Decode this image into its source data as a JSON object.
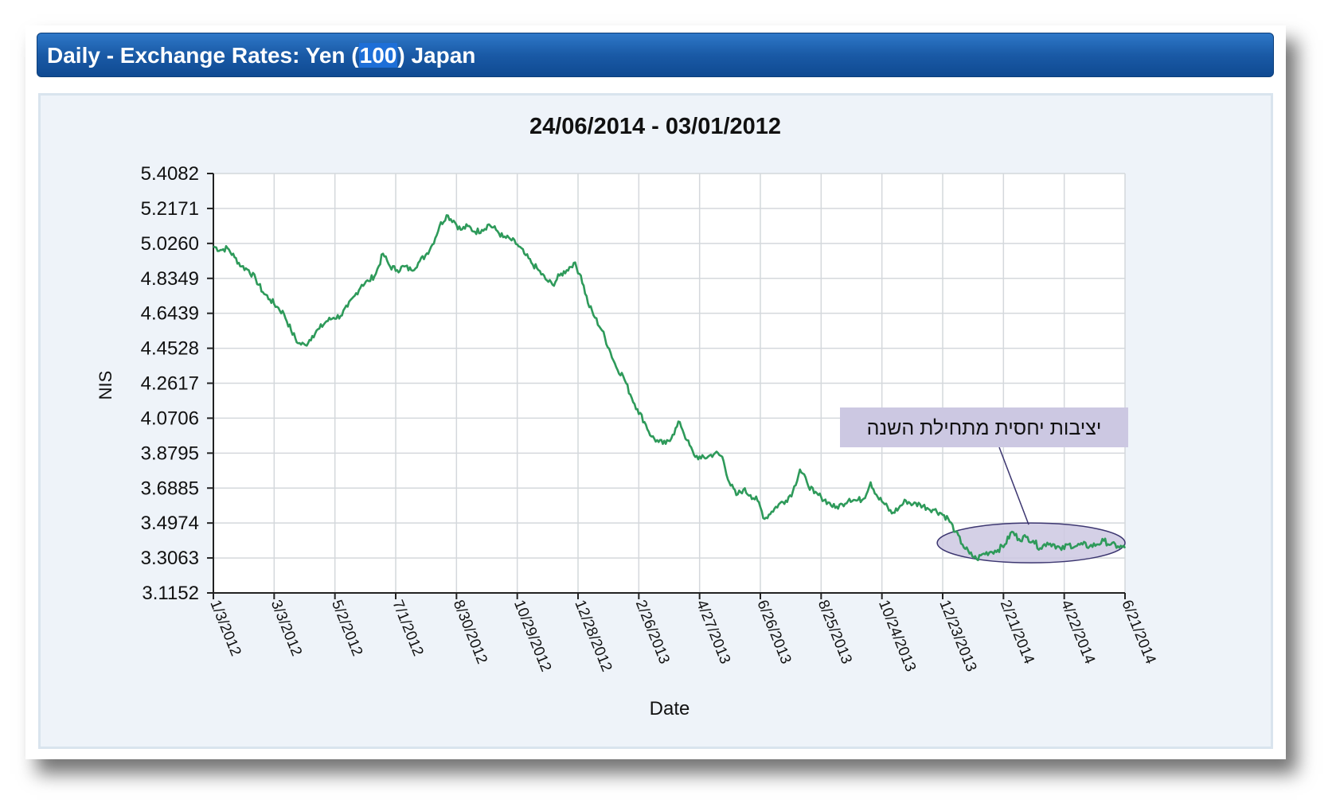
{
  "header": {
    "title_prefix": "Daily - Exchange Rates: Yen (",
    "title_highlight": "100",
    "title_suffix": ") Japan"
  },
  "chart_data": {
    "type": "line",
    "title": "24/06/2014 - 03/01/2012",
    "xlabel": "Date",
    "ylabel": "NIS",
    "ylim": [
      3.1152,
      5.4082
    ],
    "yticks": [
      "3.1152",
      "3.3063",
      "3.4974",
      "3.6885",
      "3.8795",
      "4.0706",
      "4.2617",
      "4.4528",
      "4.6439",
      "4.8349",
      "5.0260",
      "5.2171",
      "5.4082"
    ],
    "xticks": [
      "1/3/2012",
      "3/3/2012",
      "5/2/2012",
      "7/1/2012",
      "8/30/2012",
      "10/29/2012",
      "12/28/2012",
      "2/26/2013",
      "4/27/2013",
      "6/26/2013",
      "8/25/2013",
      "10/24/2013",
      "12/23/2013",
      "2/21/2014",
      "4/22/2014",
      "6/21/2014"
    ],
    "xlim": [
      "2012-01-03",
      "2014-06-24"
    ],
    "grid": true,
    "series": [
      {
        "color": "#2e9a5a",
        "points": [
          [
            "2012-01-03",
            5.01
          ],
          [
            "2012-01-10",
            4.99
          ],
          [
            "2012-01-17",
            5.0
          ],
          [
            "2012-01-24",
            4.95
          ],
          [
            "2012-01-31",
            4.9
          ],
          [
            "2012-02-07",
            4.88
          ],
          [
            "2012-02-14",
            4.83
          ],
          [
            "2012-02-21",
            4.76
          ],
          [
            "2012-02-28",
            4.72
          ],
          [
            "2012-03-06",
            4.68
          ],
          [
            "2012-03-13",
            4.64
          ],
          [
            "2012-03-20",
            4.55
          ],
          [
            "2012-03-27",
            4.48
          ],
          [
            "2012-04-03",
            4.47
          ],
          [
            "2012-04-10",
            4.52
          ],
          [
            "2012-04-17",
            4.56
          ],
          [
            "2012-04-24",
            4.6
          ],
          [
            "2012-05-01",
            4.62
          ],
          [
            "2012-05-08",
            4.63
          ],
          [
            "2012-05-15",
            4.68
          ],
          [
            "2012-05-22",
            4.74
          ],
          [
            "2012-05-29",
            4.8
          ],
          [
            "2012-06-05",
            4.82
          ],
          [
            "2012-06-12",
            4.86
          ],
          [
            "2012-06-19",
            4.97
          ],
          [
            "2012-06-26",
            4.9
          ],
          [
            "2012-07-03",
            4.88
          ],
          [
            "2012-07-10",
            4.9
          ],
          [
            "2012-07-17",
            4.88
          ],
          [
            "2012-07-24",
            4.92
          ],
          [
            "2012-07-31",
            4.96
          ],
          [
            "2012-08-07",
            5.02
          ],
          [
            "2012-08-14",
            5.12
          ],
          [
            "2012-08-21",
            5.18
          ],
          [
            "2012-08-28",
            5.15
          ],
          [
            "2012-09-04",
            5.1
          ],
          [
            "2012-09-11",
            5.12
          ],
          [
            "2012-09-18",
            5.09
          ],
          [
            "2012-09-25",
            5.1
          ],
          [
            "2012-10-02",
            5.13
          ],
          [
            "2012-10-09",
            5.1
          ],
          [
            "2012-10-16",
            5.06
          ],
          [
            "2012-10-23",
            5.05
          ],
          [
            "2012-10-30",
            5.02
          ],
          [
            "2012-11-06",
            4.97
          ],
          [
            "2012-11-13",
            4.92
          ],
          [
            "2012-11-20",
            4.88
          ],
          [
            "2012-11-27",
            4.83
          ],
          [
            "2012-12-04",
            4.8
          ],
          [
            "2012-12-11",
            4.85
          ],
          [
            "2012-12-18",
            4.88
          ],
          [
            "2012-12-25",
            4.92
          ],
          [
            "2013-01-01",
            4.85
          ],
          [
            "2013-01-08",
            4.7
          ],
          [
            "2013-01-15",
            4.62
          ],
          [
            "2013-01-22",
            4.55
          ],
          [
            "2013-01-29",
            4.45
          ],
          [
            "2013-02-05",
            4.35
          ],
          [
            "2013-02-12",
            4.3
          ],
          [
            "2013-02-19",
            4.2
          ],
          [
            "2013-02-26",
            4.12
          ],
          [
            "2013-03-05",
            4.05
          ],
          [
            "2013-03-12",
            3.97
          ],
          [
            "2013-03-19",
            3.94
          ],
          [
            "2013-03-26",
            3.93
          ],
          [
            "2013-04-02",
            3.98
          ],
          [
            "2013-04-09",
            4.05
          ],
          [
            "2013-04-16",
            3.95
          ],
          [
            "2013-04-23",
            3.87
          ],
          [
            "2013-04-30",
            3.85
          ],
          [
            "2013-05-07",
            3.86
          ],
          [
            "2013-05-14",
            3.88
          ],
          [
            "2013-05-21",
            3.86
          ],
          [
            "2013-05-28",
            3.72
          ],
          [
            "2013-06-04",
            3.65
          ],
          [
            "2013-06-11",
            3.68
          ],
          [
            "2013-06-18",
            3.65
          ],
          [
            "2013-06-25",
            3.62
          ],
          [
            "2013-07-02",
            3.52
          ],
          [
            "2013-07-09",
            3.56
          ],
          [
            "2013-07-16",
            3.6
          ],
          [
            "2013-07-23",
            3.62
          ],
          [
            "2013-07-30",
            3.67
          ],
          [
            "2013-08-06",
            3.79
          ],
          [
            "2013-08-13",
            3.72
          ],
          [
            "2013-08-20",
            3.66
          ],
          [
            "2013-08-27",
            3.64
          ],
          [
            "2013-09-03",
            3.61
          ],
          [
            "2013-09-10",
            3.58
          ],
          [
            "2013-09-17",
            3.6
          ],
          [
            "2013-09-24",
            3.63
          ],
          [
            "2013-10-01",
            3.62
          ],
          [
            "2013-10-08",
            3.63
          ],
          [
            "2013-10-15",
            3.72
          ],
          [
            "2013-10-22",
            3.64
          ],
          [
            "2013-10-29",
            3.6
          ],
          [
            "2013-11-05",
            3.55
          ],
          [
            "2013-11-12",
            3.58
          ],
          [
            "2013-11-19",
            3.62
          ],
          [
            "2013-11-26",
            3.6
          ],
          [
            "2013-12-03",
            3.6
          ],
          [
            "2013-12-10",
            3.58
          ],
          [
            "2013-12-17",
            3.57
          ],
          [
            "2013-12-24",
            3.55
          ],
          [
            "2013-12-31",
            3.52
          ],
          [
            "2014-01-07",
            3.45
          ],
          [
            "2014-01-14",
            3.38
          ],
          [
            "2014-01-21",
            3.33
          ],
          [
            "2014-01-28",
            3.3
          ],
          [
            "2014-02-04",
            3.33
          ],
          [
            "2014-02-11",
            3.34
          ],
          [
            "2014-02-18",
            3.35
          ],
          [
            "2014-02-25",
            3.38
          ],
          [
            "2014-03-04",
            3.45
          ],
          [
            "2014-03-11",
            3.41
          ],
          [
            "2014-03-18",
            3.42
          ],
          [
            "2014-03-25",
            3.4
          ],
          [
            "2014-04-01",
            3.36
          ],
          [
            "2014-04-08",
            3.39
          ],
          [
            "2014-04-15",
            3.38
          ],
          [
            "2014-04-22",
            3.35
          ],
          [
            "2014-04-29",
            3.38
          ],
          [
            "2014-05-06",
            3.37
          ],
          [
            "2014-05-13",
            3.38
          ],
          [
            "2014-05-20",
            3.37
          ],
          [
            "2014-05-27",
            3.38
          ],
          [
            "2014-06-03",
            3.4
          ],
          [
            "2014-06-10",
            3.38
          ],
          [
            "2014-06-17",
            3.37
          ],
          [
            "2014-06-24",
            3.36
          ]
        ]
      }
    ],
    "annotation": {
      "text": "יציבות יחסית מתחילת השנה",
      "x_range": [
        "2013-12-20",
        "2014-06-24"
      ],
      "y_range": [
        3.28,
        3.4974
      ],
      "color": "#ccc8e2"
    }
  }
}
